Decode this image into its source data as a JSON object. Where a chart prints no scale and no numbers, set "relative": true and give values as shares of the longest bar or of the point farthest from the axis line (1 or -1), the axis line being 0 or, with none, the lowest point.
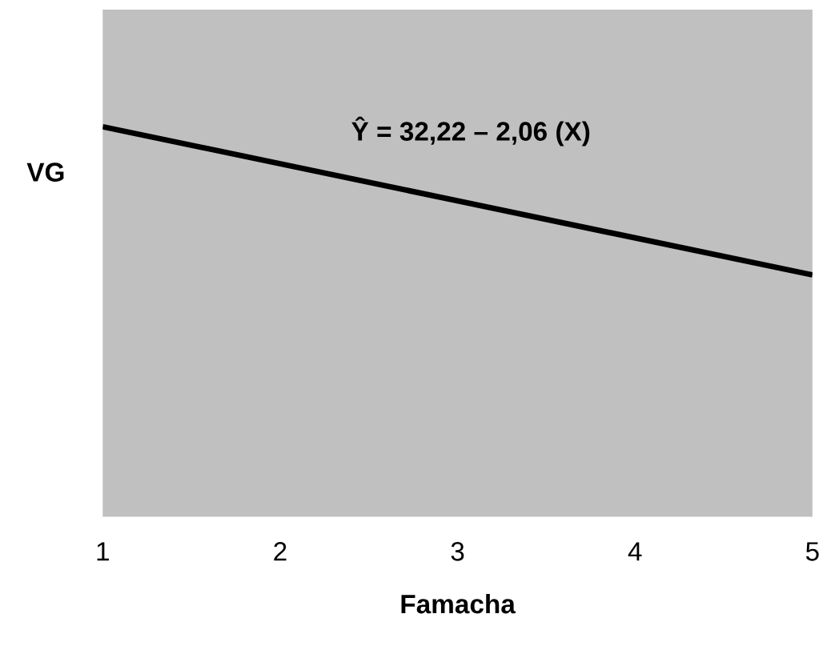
{
  "chart_data": {
    "type": "line",
    "relative": true,
    "xlabel": "Famacha",
    "ylabel": "VG",
    "x": [
      1,
      5
    ],
    "xlim": [
      1,
      5
    ],
    "xticks": [
      1,
      2,
      3,
      4,
      5
    ],
    "series": [
      {
        "color": "#000000",
        "values": [
          1,
          0.62
        ]
      }
    ],
    "annotations": [
      "Ŷ = 32,22 – 2,06 (X)"
    ],
    "grid": false,
    "legend": false,
    "marker": "none",
    "line_style": "solid"
  }
}
